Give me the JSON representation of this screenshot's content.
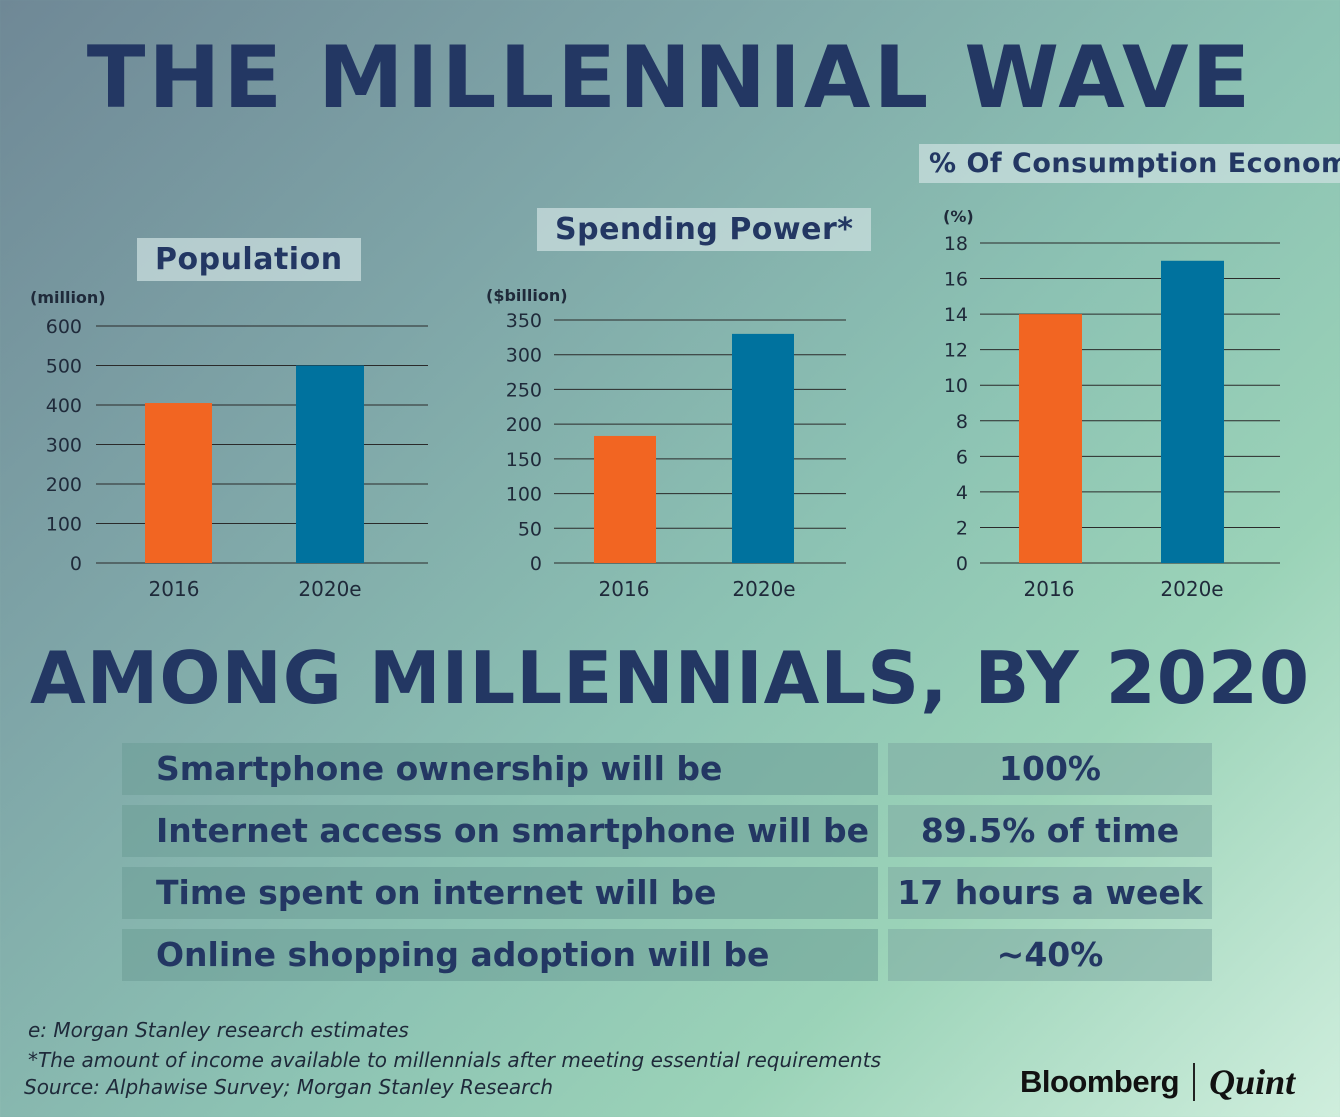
{
  "title": "THE MILLENNIAL WAVE",
  "section_title": "AMONG MILLENNIALS, BY 2020",
  "colors": {
    "bar_2016": "#f26522",
    "bar_2020": "#00729e",
    "title": "#233763"
  },
  "chart_data": [
    {
      "type": "bar",
      "title": "Population",
      "ylabel": "(million)",
      "categories": [
        "2016",
        "2020e"
      ],
      "values": [
        405,
        500
      ],
      "ylim": [
        0,
        600
      ],
      "yticks": [
        "0",
        "100",
        "200",
        "300",
        "400",
        "500",
        "600"
      ],
      "grid": true
    },
    {
      "type": "bar",
      "title": "Spending Power*",
      "ylabel": "($billion)",
      "categories": [
        "2016",
        "2020e"
      ],
      "values": [
        183,
        330
      ],
      "ylim": [
        0,
        350
      ],
      "yticks": [
        "0",
        "50",
        "100",
        "150",
        "200",
        "250",
        "300",
        "350"
      ],
      "grid": true
    },
    {
      "type": "bar",
      "title": "% Of Consumption Economy",
      "ylabel": "(%)",
      "categories": [
        "2016",
        "2020e"
      ],
      "values": [
        14,
        17
      ],
      "ylim": [
        0,
        18
      ],
      "yticks": [
        "0",
        "2",
        "4",
        "6",
        "8",
        "10",
        "12",
        "14",
        "16",
        "18"
      ],
      "grid": true
    }
  ],
  "stats": [
    {
      "label": "Smartphone ownership will be",
      "value": "100%"
    },
    {
      "label": "Internet access on smartphone will be",
      "value": "89.5% of time"
    },
    {
      "label": "Time spent on internet will be",
      "value": "17 hours a week"
    },
    {
      "label": "Online shopping adoption will be",
      "value": "~40%"
    }
  ],
  "footnotes": {
    "estimate_note": "e: Morgan Stanley research estimates",
    "spending_note": "*The amount of income available to millennials after meeting essential requirements",
    "source": "Source: Alphawise Survey; Morgan Stanley Research"
  },
  "brand": {
    "name1": "Bloomberg",
    "name2": "Quint"
  }
}
